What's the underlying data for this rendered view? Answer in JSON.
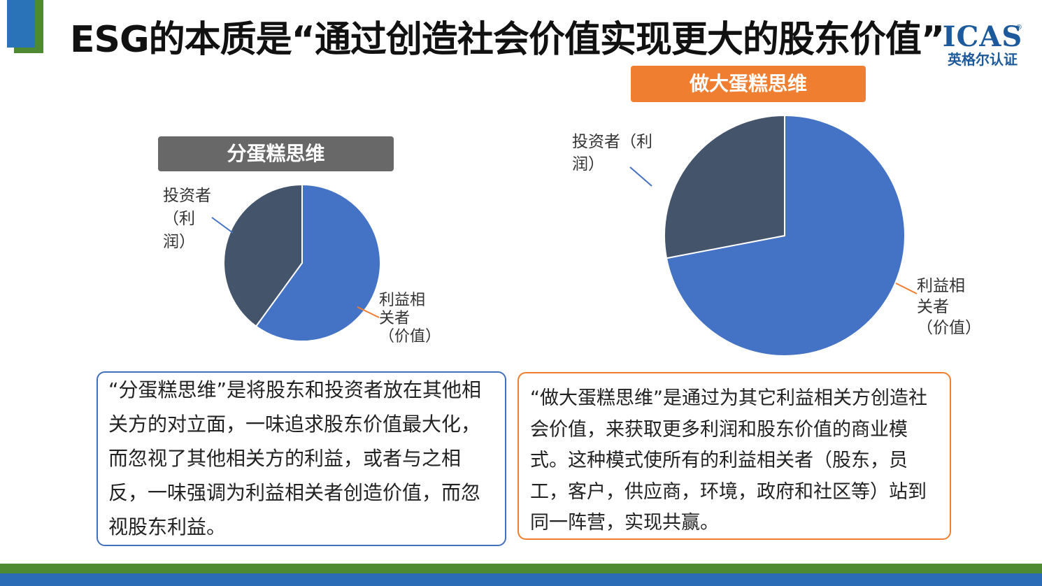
{
  "slide": {
    "title": "ESG的本质是“通过创造社会价值实现更大的股东价值”",
    "logo": {
      "name": "ICAS",
      "registered": "®",
      "subtitle": "英格尔认证"
    }
  },
  "left_panel": {
    "tag": "分蛋糕思维",
    "label_investor_1": "投资者",
    "label_investor_2": "（利",
    "label_investor_3": "润）",
    "label_stakeholder_1": "利益相",
    "label_stakeholder_2": "关者",
    "label_stakeholder_3": "（价值）",
    "description": "“分蛋糕思维”是将股东和投资者放在其他相关方的对立面，一味追求股东价值最大化，而忽视了其他相关方的利益，或者与之相反，一味强调为利益相关者创造价值，而忽视股东利益。"
  },
  "right_panel": {
    "tag": "做大蛋糕思维",
    "label_investor_1": "投资者（利",
    "label_investor_2": "润）",
    "label_stakeholder_1": "利益相",
    "label_stakeholder_2": "关者",
    "label_stakeholder_3": "（价值）",
    "description": "“做大蛋糕思维”是通过为其它利益相关方创造社会价值，来获取更多利润和股东价值的商业模式。这种模式使所有的利益相关者（股东，员工，客户，供应商，环境，政府和社区等）站到同一阵营，实现共赢。"
  },
  "chart_data": [
    {
      "type": "pie",
      "title": "分蛋糕思维",
      "slices": [
        {
          "label": "利益相关者（价值）",
          "value": 60,
          "color": "#4472c4"
        },
        {
          "label": "投资者（利润）",
          "value": 40,
          "color": "#44546a"
        }
      ]
    },
    {
      "type": "pie",
      "title": "做大蛋糕思维",
      "slices": [
        {
          "label": "利益相关者（价值）",
          "value": 72,
          "color": "#4472c4"
        },
        {
          "label": "投资者（利润）",
          "value": 28,
          "color": "#44546a"
        }
      ]
    }
  ]
}
